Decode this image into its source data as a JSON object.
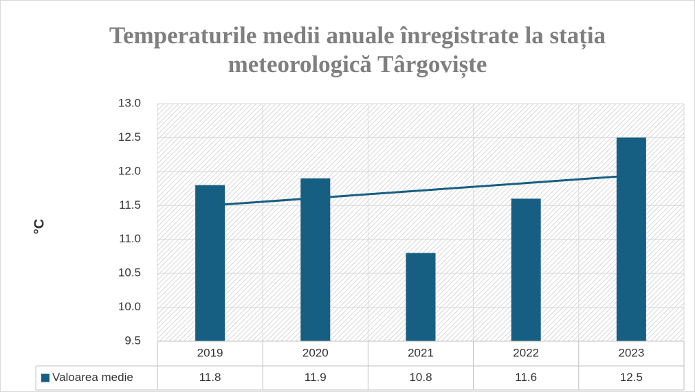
{
  "chart_data": {
    "type": "bar",
    "title": [
      "Temperaturile medii anuale înregistrate la stația",
      "meteorologică Târgoviște"
    ],
    "y_label": "°C",
    "categories": [
      "2019",
      "2020",
      "2021",
      "2022",
      "2023"
    ],
    "series": [
      {
        "name": "Valoarea medie",
        "color": "#175f82",
        "values": [
          11.8,
          11.9,
          10.8,
          11.6,
          12.5
        ]
      }
    ],
    "ylim": [
      9.5,
      13.0
    ],
    "yticks": [
      9.5,
      {
        "value": 10.0,
        "label": "10.0"
      },
      10.5,
      {
        "value": 11.0,
        "label": "11.0"
      },
      11.5,
      {
        "value": 12.0,
        "label": "12.0"
      },
      12.5,
      {
        "value": 13.0,
        "label": "13.0"
      }
    ],
    "grid": true,
    "trendline": true,
    "data_table": true
  }
}
